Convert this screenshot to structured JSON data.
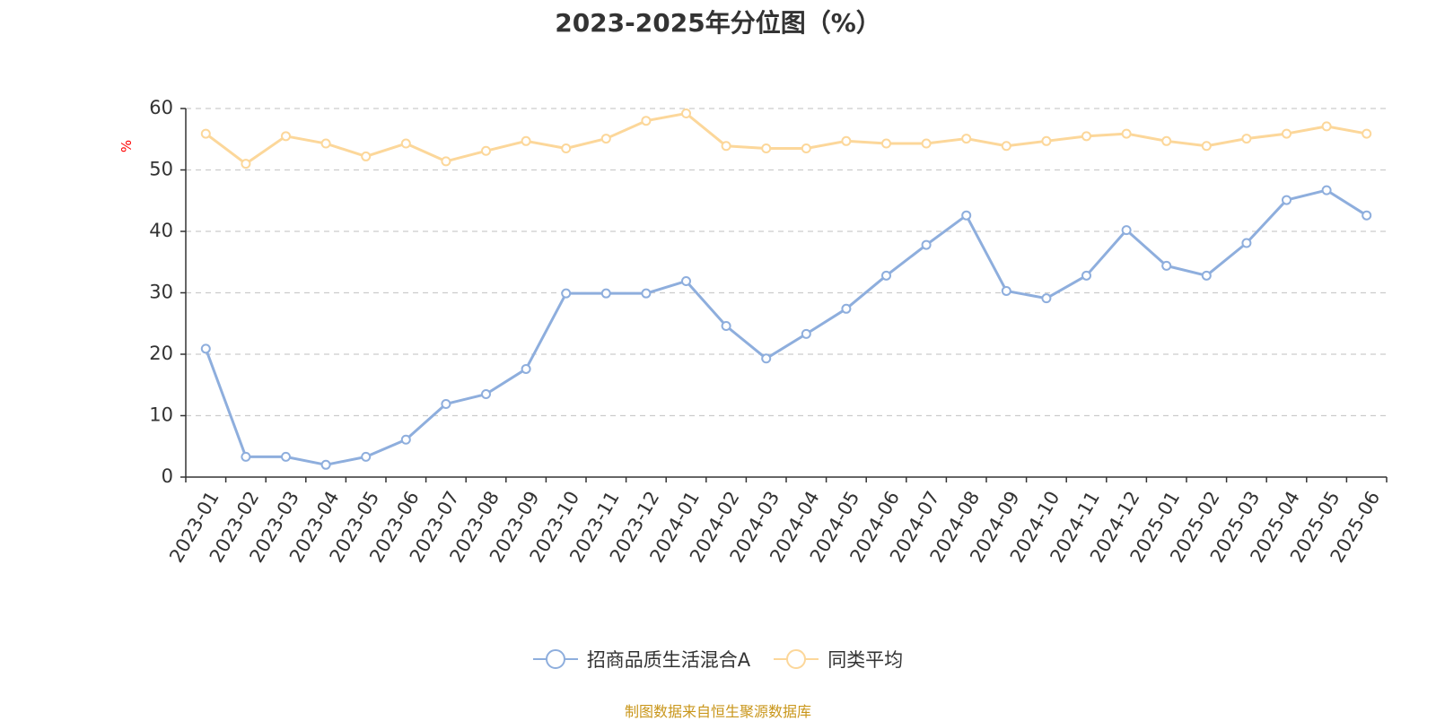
{
  "chart_data": {
    "type": "line",
    "title": "2023-2025年分位图（%）",
    "ylabel": "%",
    "xlabel": "",
    "ylim": [
      0,
      60
    ],
    "yticks": [
      0,
      10,
      20,
      30,
      40,
      50,
      60
    ],
    "grid": "horizontal dashed",
    "legend_position": "bottom-center",
    "categories": [
      "2023-01",
      "2023-02",
      "2023-03",
      "2023-04",
      "2023-05",
      "2023-06",
      "2023-07",
      "2023-08",
      "2023-09",
      "2023-10",
      "2023-11",
      "2023-12",
      "2024-01",
      "2024-02",
      "2024-03",
      "2024-04",
      "2024-05",
      "2024-06",
      "2024-07",
      "2024-08",
      "2024-09",
      "2024-10",
      "2024-11",
      "2024-12",
      "2025-01",
      "2025-02",
      "2025-03",
      "2025-04",
      "2025-05",
      "2025-06"
    ],
    "series": [
      {
        "name": "招商品质生活混合A",
        "color": "#8eaedd",
        "values": [
          20.9,
          3.3,
          3.3,
          2.0,
          3.3,
          6.1,
          11.9,
          13.5,
          17.6,
          29.9,
          29.9,
          29.9,
          31.9,
          24.6,
          19.3,
          23.3,
          27.4,
          32.8,
          37.8,
          42.6,
          30.3,
          29.1,
          32.8,
          40.2,
          34.4,
          32.8,
          38.1,
          45.1,
          46.7,
          42.6
        ]
      },
      {
        "name": "同类平均",
        "color": "#fcd79a",
        "values": [
          55.9,
          51.0,
          55.5,
          54.3,
          52.2,
          54.3,
          51.4,
          53.1,
          54.7,
          53.5,
          55.1,
          58.0,
          59.2,
          53.9,
          53.5,
          53.5,
          54.7,
          54.3,
          54.3,
          55.1,
          53.9,
          54.7,
          55.5,
          55.9,
          54.7,
          53.9,
          55.1,
          55.9,
          57.1,
          55.9
        ]
      }
    ]
  },
  "source_note": "制图数据来自恒生聚源数据库",
  "colors": {
    "axis": "#333333",
    "grid": "#cccccc",
    "ylabel": "#ff0000",
    "source": "#c9961a"
  }
}
